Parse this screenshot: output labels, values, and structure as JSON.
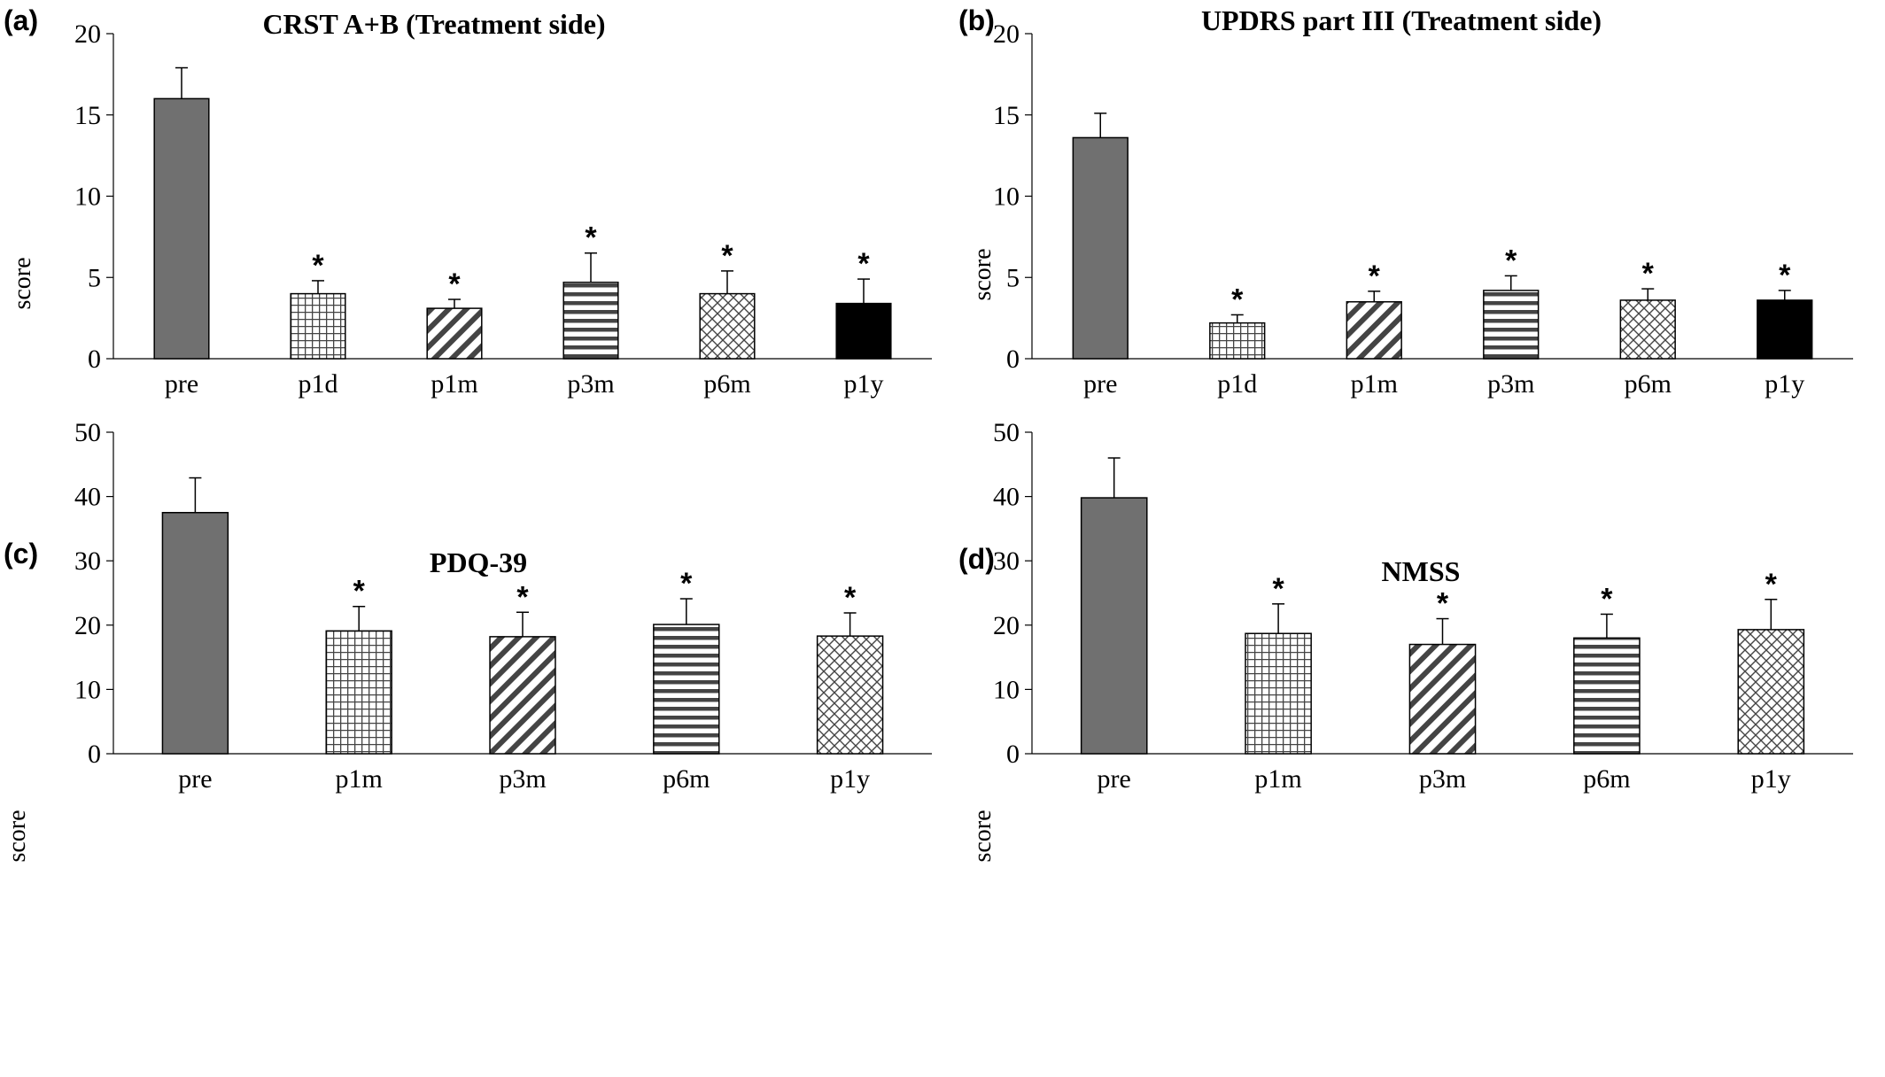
{
  "colors": {
    "pre": "#707070",
    "solid_black": "#000000",
    "pattern_ink": "#444444",
    "axis": "#000000",
    "star": "#000000"
  },
  "patterns": [
    "solid-gray",
    "grid",
    "diagonal",
    "horizontal",
    "crosshatch",
    "solid-black"
  ],
  "chart_data": [
    {
      "panel": "(a)",
      "type": "bar",
      "title": "CRST A+B (Treatment side)",
      "ylabel": "score",
      "xlabel": "",
      "ylim": [
        0,
        20
      ],
      "yticks": [
        0,
        5,
        10,
        15,
        20
      ],
      "categories": [
        "pre",
        "p1d",
        "p1m",
        "p3m",
        "p6m",
        "p1y"
      ],
      "values": [
        16.0,
        4.0,
        3.1,
        4.7,
        4.0,
        3.4
      ],
      "errors": [
        1.9,
        0.8,
        0.55,
        1.8,
        1.4,
        1.5
      ],
      "significant": [
        false,
        true,
        true,
        true,
        true,
        true
      ],
      "patterns": [
        "solid-gray",
        "grid",
        "diagonal",
        "horizontal",
        "crosshatch",
        "solid-black"
      ],
      "star_label": "*",
      "grid": false,
      "legend": "none"
    },
    {
      "panel": "(b)",
      "type": "bar",
      "title": "UPDRS part III (Treatment side)",
      "ylabel": "score",
      "xlabel": "",
      "ylim": [
        0,
        20
      ],
      "yticks": [
        0,
        5,
        10,
        15,
        20
      ],
      "categories": [
        "pre",
        "p1d",
        "p1m",
        "p3m",
        "p6m",
        "p1y"
      ],
      "values": [
        13.6,
        2.2,
        3.5,
        4.2,
        3.6,
        3.6
      ],
      "errors": [
        1.5,
        0.5,
        0.65,
        0.9,
        0.7,
        0.6
      ],
      "significant": [
        false,
        true,
        true,
        true,
        true,
        true
      ],
      "patterns": [
        "solid-gray",
        "grid",
        "diagonal",
        "horizontal",
        "crosshatch",
        "solid-black"
      ],
      "star_label": "*",
      "grid": false,
      "legend": "none"
    },
    {
      "panel": "(c)",
      "type": "bar",
      "title": "PDQ-39",
      "ylabel": "score",
      "xlabel": "",
      "ylim": [
        0,
        50
      ],
      "yticks": [
        0,
        10,
        20,
        30,
        40,
        50
      ],
      "categories": [
        "pre",
        "p1m",
        "p3m",
        "p6m",
        "p1y"
      ],
      "values": [
        37.5,
        19.1,
        18.2,
        20.1,
        18.3
      ],
      "errors": [
        5.4,
        3.8,
        3.8,
        4.0,
        3.6
      ],
      "significant": [
        false,
        true,
        true,
        true,
        true
      ],
      "patterns": [
        "solid-gray",
        "grid",
        "diagonal",
        "horizontal",
        "crosshatch"
      ],
      "star_label": "*",
      "grid": false,
      "legend": "none"
    },
    {
      "panel": "(d)",
      "type": "bar",
      "title": "NMSS",
      "ylabel": "score",
      "xlabel": "",
      "ylim": [
        0,
        50
      ],
      "yticks": [
        0,
        10,
        20,
        30,
        40,
        50
      ],
      "categories": [
        "pre",
        "p1m",
        "p3m",
        "p6m",
        "p1y"
      ],
      "values": [
        39.8,
        18.7,
        17.0,
        18.0,
        19.3
      ],
      "errors": [
        6.2,
        4.6,
        4.0,
        3.7,
        4.7
      ],
      "significant": [
        false,
        true,
        true,
        true,
        true
      ],
      "patterns": [
        "solid-gray",
        "grid",
        "diagonal",
        "horizontal",
        "crosshatch"
      ],
      "star_label": "*",
      "grid": false,
      "legend": "none"
    }
  ]
}
